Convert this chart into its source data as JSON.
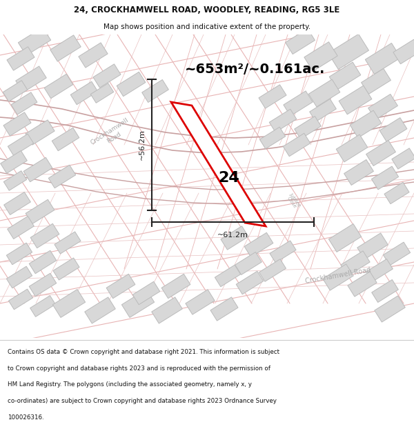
{
  "title_line1": "24, CROCKHAMWELL ROAD, WOODLEY, READING, RG5 3LE",
  "title_line2": "Map shows position and indicative extent of the property.",
  "area_text": "~653m²/~0.161ac.",
  "label_number": "24",
  "dim_vertical": "~56.2m",
  "dim_horizontal": "~61.2m",
  "footer_lines": [
    "Contains OS data © Crown copyright and database right 2021. This information is subject",
    "to Crown copyright and database rights 2023 and is reproduced with the permission of",
    "HM Land Registry. The polygons (including the associated geometry, namely x, y",
    "co-ordinates) are subject to Crown copyright and database rights 2023 Ordnance Survey",
    "100026316."
  ],
  "map_bg": "#f7f7f7",
  "road_line_color": "#e8b4b4",
  "road_fill_color": "#f0d8d8",
  "building_fill": "#d8d8d8",
  "building_edge": "#bbbbbb",
  "highlight_fill": "#ffffff",
  "highlight_edge": "#dd0000",
  "road_label_color": "#aaaaaa",
  "dim_color": "#222222",
  "title_color": "#111111",
  "footer_color": "#111111",
  "title_bold": true,
  "map_border_color": "#cccccc"
}
